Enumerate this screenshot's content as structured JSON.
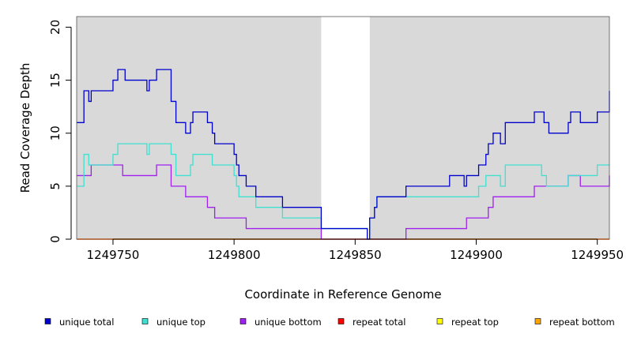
{
  "chart_data": {
    "type": "line",
    "title": "",
    "xlabel": "Coordinate in Reference Genome",
    "ylabel": "Read Coverage Depth",
    "xlim": [
      1249735,
      1249955
    ],
    "ylim": [
      0,
      21
    ],
    "x_ticks": [
      1249750,
      1249800,
      1249850,
      1249900,
      1249950
    ],
    "y_ticks": [
      0,
      5,
      10,
      15,
      20
    ],
    "background_color": "#d9d9d9",
    "gap_region": [
      1249836,
      1249856
    ],
    "legend_position": "bottom",
    "series": [
      {
        "name": "unique total",
        "color": "#0000cd",
        "points": [
          [
            1249735,
            11
          ],
          [
            1249738,
            14
          ],
          [
            1249740,
            13
          ],
          [
            1249741,
            14
          ],
          [
            1249750,
            15
          ],
          [
            1249752,
            16
          ],
          [
            1249755,
            15
          ],
          [
            1249764,
            14
          ],
          [
            1249765,
            15
          ],
          [
            1249768,
            16
          ],
          [
            1249774,
            13
          ],
          [
            1249776,
            11
          ],
          [
            1249780,
            10
          ],
          [
            1249782,
            11
          ],
          [
            1249783,
            12
          ],
          [
            1249789,
            11
          ],
          [
            1249791,
            10
          ],
          [
            1249792,
            9
          ],
          [
            1249800,
            8
          ],
          [
            1249801,
            7
          ],
          [
            1249802,
            6
          ],
          [
            1249805,
            5
          ],
          [
            1249809,
            4
          ],
          [
            1249820,
            3
          ],
          [
            1249836,
            1
          ],
          [
            1249855,
            0
          ],
          [
            1249856,
            2
          ],
          [
            1249858,
            3
          ],
          [
            1249859,
            4
          ],
          [
            1249871,
            5
          ],
          [
            1249889,
            6
          ],
          [
            1249895,
            5
          ],
          [
            1249896,
            6
          ],
          [
            1249901,
            7
          ],
          [
            1249904,
            8
          ],
          [
            1249905,
            9
          ],
          [
            1249907,
            10
          ],
          [
            1249910,
            9
          ],
          [
            1249912,
            11
          ],
          [
            1249924,
            12
          ],
          [
            1249928,
            11
          ],
          [
            1249930,
            10
          ],
          [
            1249938,
            11
          ],
          [
            1249939,
            12
          ],
          [
            1249943,
            11
          ],
          [
            1249950,
            12
          ],
          [
            1249955,
            14
          ]
        ]
      },
      {
        "name": "unique top",
        "color": "#40e0d0",
        "points": [
          [
            1249735,
            5
          ],
          [
            1249738,
            8
          ],
          [
            1249740,
            7
          ],
          [
            1249750,
            8
          ],
          [
            1249752,
            9
          ],
          [
            1249764,
            8
          ],
          [
            1249765,
            9
          ],
          [
            1249774,
            8
          ],
          [
            1249776,
            6
          ],
          [
            1249782,
            7
          ],
          [
            1249783,
            8
          ],
          [
            1249791,
            7
          ],
          [
            1249800,
            6
          ],
          [
            1249801,
            5
          ],
          [
            1249802,
            4
          ],
          [
            1249809,
            3
          ],
          [
            1249820,
            2
          ],
          [
            1249836,
            1
          ],
          [
            1249855,
            0
          ],
          [
            1249856,
            2
          ],
          [
            1249858,
            3
          ],
          [
            1249859,
            4
          ],
          [
            1249871,
            4
          ],
          [
            1249895,
            4
          ],
          [
            1249901,
            5
          ],
          [
            1249904,
            6
          ],
          [
            1249910,
            5
          ],
          [
            1249912,
            7
          ],
          [
            1249927,
            6
          ],
          [
            1249929,
            5
          ],
          [
            1249938,
            6
          ],
          [
            1249950,
            7
          ],
          [
            1249955,
            7
          ]
        ]
      },
      {
        "name": "unique bottom",
        "color": "#a020f0",
        "points": [
          [
            1249735,
            6
          ],
          [
            1249741,
            7
          ],
          [
            1249754,
            6
          ],
          [
            1249768,
            7
          ],
          [
            1249774,
            5
          ],
          [
            1249780,
            4
          ],
          [
            1249789,
            3
          ],
          [
            1249792,
            2
          ],
          [
            1249805,
            1
          ],
          [
            1249836,
            0
          ],
          [
            1249871,
            1
          ],
          [
            1249896,
            2
          ],
          [
            1249905,
            3
          ],
          [
            1249907,
            4
          ],
          [
            1249924,
            5
          ],
          [
            1249938,
            6
          ],
          [
            1249943,
            5
          ],
          [
            1249955,
            6
          ]
        ]
      },
      {
        "name": "repeat total",
        "color": "#ff0000",
        "points": [
          [
            1249735,
            0
          ],
          [
            1249955,
            0
          ]
        ]
      },
      {
        "name": "repeat top",
        "color": "#ffff00",
        "points": [
          [
            1249735,
            0
          ],
          [
            1249955,
            0
          ]
        ]
      },
      {
        "name": "repeat bottom",
        "color": "#ffa500",
        "points": [
          [
            1249735,
            0
          ],
          [
            1249955,
            0
          ]
        ]
      }
    ]
  }
}
